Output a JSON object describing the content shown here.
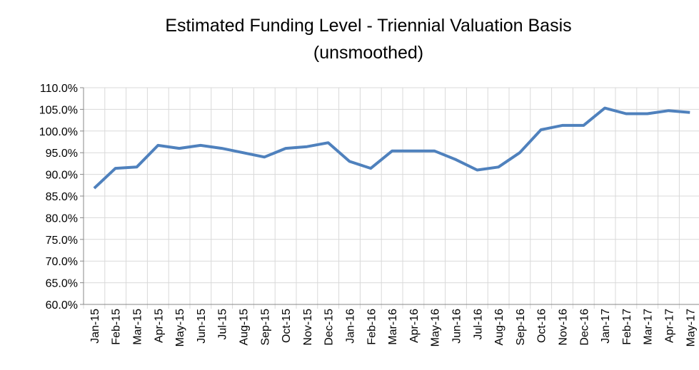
{
  "chart_data": {
    "type": "line",
    "title": "Estimated Funding Level - Triennial Valuation Basis",
    "subtitle": "(unsmoothed)",
    "categories": [
      "Jan-15",
      "Feb-15",
      "Mar-15",
      "Apr-15",
      "May-15",
      "Jun-15",
      "Jul-15",
      "Aug-15",
      "Sep-15",
      "Oct-15",
      "Nov-15",
      "Dec-15",
      "Jan-16",
      "Feb-16",
      "Mar-16",
      "Apr-16",
      "May-16",
      "Jun-16",
      "Jul-16",
      "Aug-16",
      "Sep-16",
      "Oct-16",
      "Nov-16",
      "Dec-16",
      "Jan-17",
      "Feb-17",
      "Mar-17",
      "Apr-17",
      "May-17"
    ],
    "series": [
      {
        "color": "#4f81bd",
        "values": [
          86.8,
          91.4,
          91.7,
          96.7,
          96.0,
          96.7,
          96.0,
          95.0,
          94.0,
          96.0,
          96.4,
          97.3,
          93.0,
          91.4,
          95.4,
          95.4,
          95.4,
          93.4,
          91.0,
          91.7,
          95.0,
          100.3,
          101.3,
          101.3,
          105.3,
          104.0,
          104.0,
          104.7,
          104.3
        ]
      }
    ],
    "ylim": [
      60,
      110
    ],
    "yticks": [
      {
        "value": 60,
        "label": "60.0%"
      },
      {
        "value": 65,
        "label": "65.0%"
      },
      {
        "value": 70,
        "label": "70.0%"
      },
      {
        "value": 75,
        "label": "75.0%"
      },
      {
        "value": 80,
        "label": "80.0%"
      },
      {
        "value": 85,
        "label": "85.0%"
      },
      {
        "value": 90,
        "label": "90.0%"
      },
      {
        "value": 95,
        "label": "95.0%"
      },
      {
        "value": 100,
        "label": "100.0%"
      },
      {
        "value": 105,
        "label": "105.0%"
      },
      {
        "value": 110,
        "label": "110.0%"
      }
    ],
    "grid": true
  }
}
